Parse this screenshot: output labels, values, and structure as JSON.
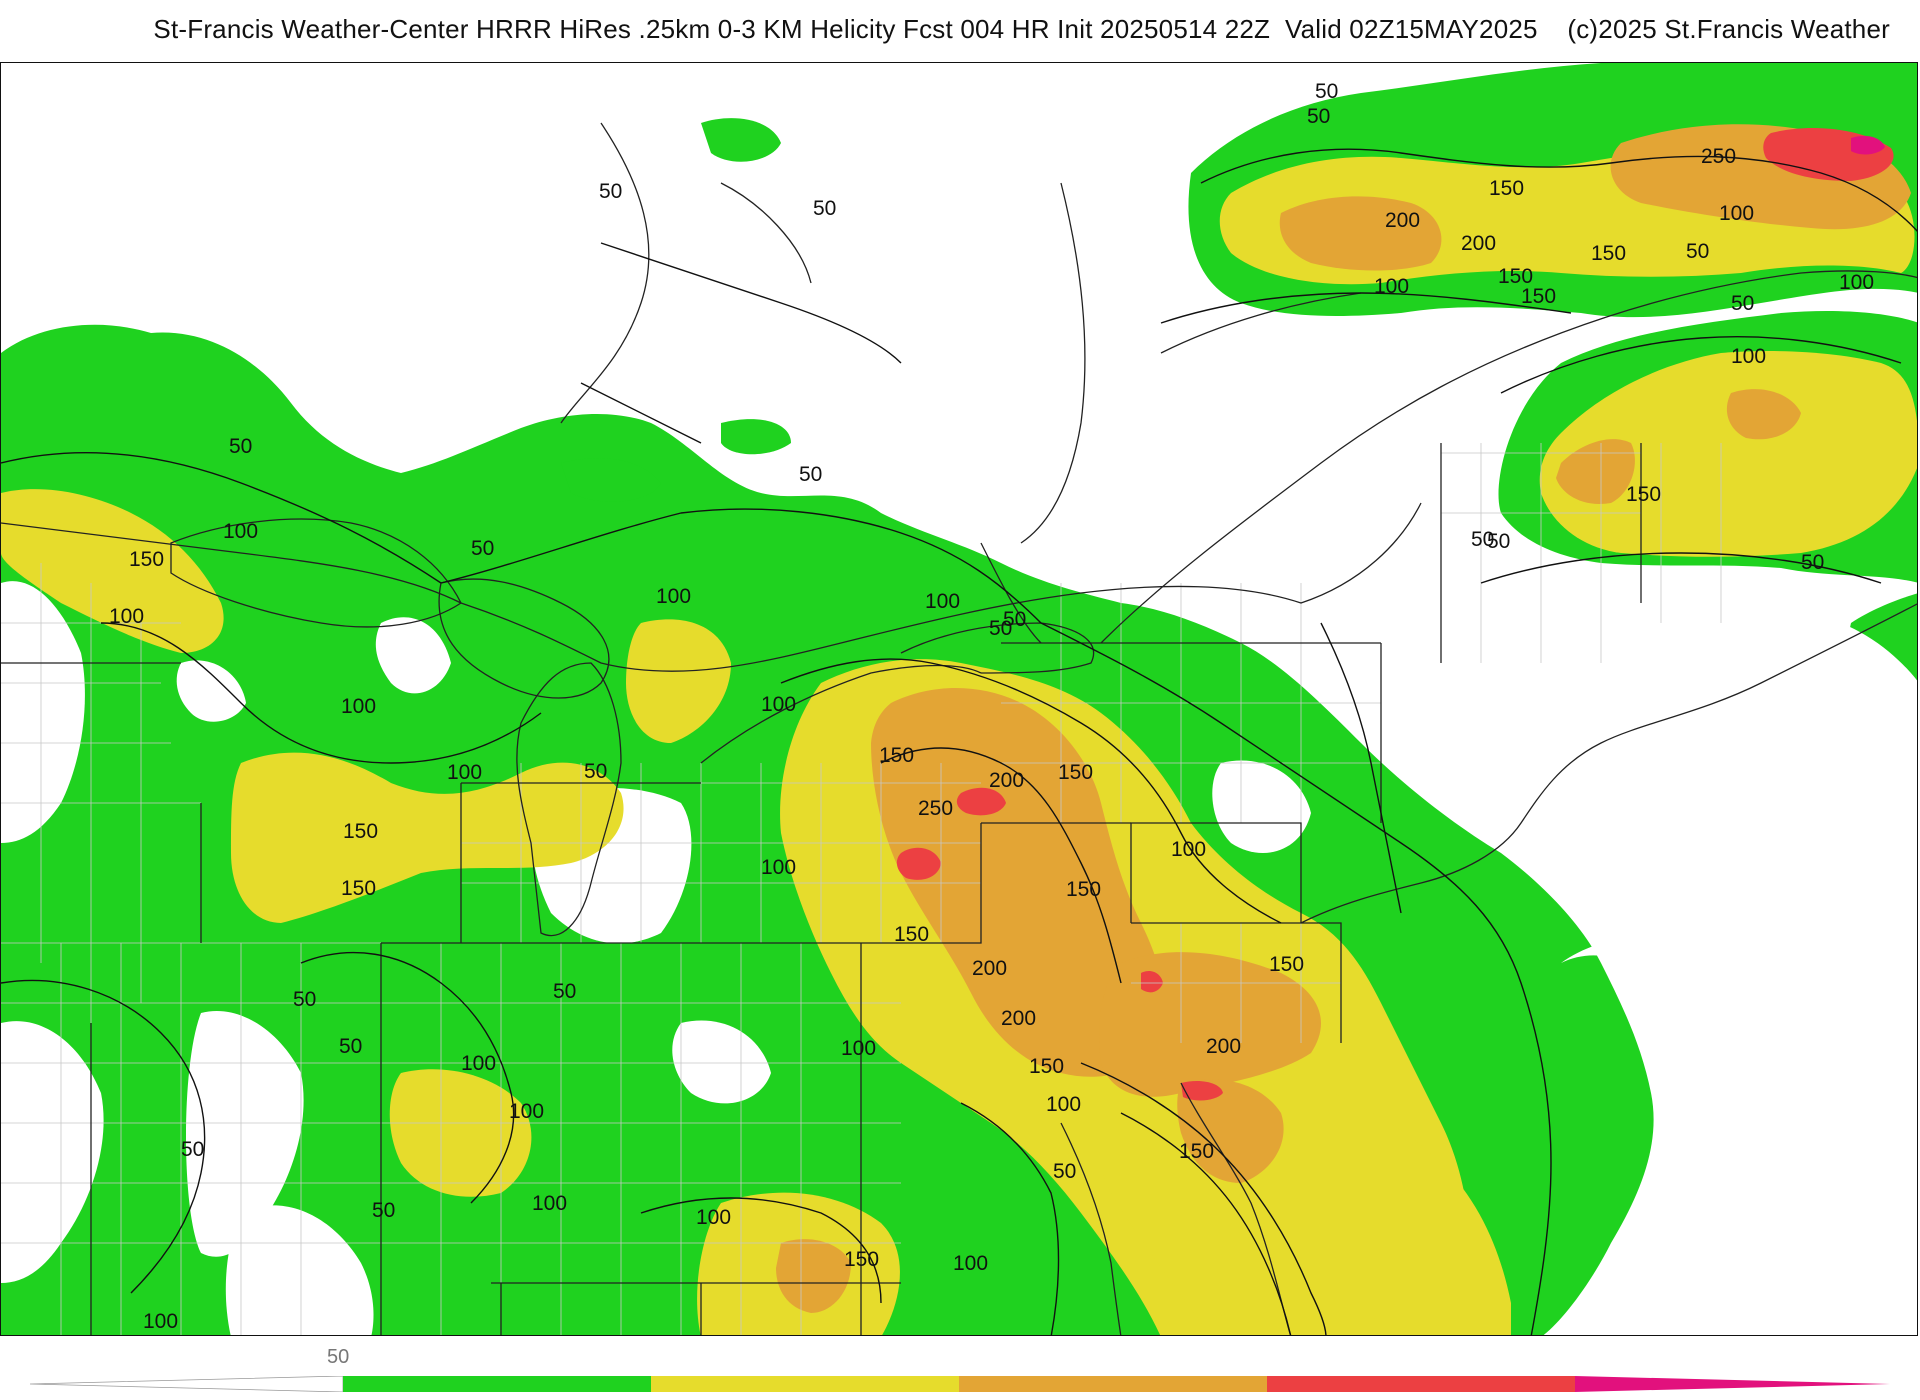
{
  "header": {
    "title": "St-Francis Weather-Center HRRR HiRes .25km 0-3 KM Helicity Fcst 004 HR Init 20250514 22Z  Valid 02Z15MAY2025    (c)2025 St.Francis Weather"
  },
  "colors": {
    "green": "#1fd21f",
    "yellow": "#e6dc2c",
    "orange": "#e3a535",
    "red": "#ec4042",
    "magenta": "#e2117d",
    "state_border": "#222222",
    "county_border": "#c8c8c8"
  },
  "map": {
    "field": "0-3 KM Helicity",
    "contour_labels": [
      {
        "id": "l1",
        "text": "50"
      },
      {
        "id": "l2",
        "text": "50"
      },
      {
        "id": "l3",
        "text": "50"
      },
      {
        "id": "l4",
        "text": "100"
      },
      {
        "id": "l5",
        "text": "150"
      },
      {
        "id": "l6",
        "text": "100"
      },
      {
        "id": "l7",
        "text": "100"
      },
      {
        "id": "l8",
        "text": "50"
      },
      {
        "id": "l9",
        "text": "100"
      },
      {
        "id": "l10",
        "text": "50"
      },
      {
        "id": "l11",
        "text": "150"
      },
      {
        "id": "l12",
        "text": "150"
      },
      {
        "id": "l13",
        "text": "100"
      },
      {
        "id": "l14",
        "text": "100"
      },
      {
        "id": "l15",
        "text": "50"
      },
      {
        "id": "l16",
        "text": "150"
      },
      {
        "id": "l17",
        "text": "200"
      },
      {
        "id": "l18",
        "text": "250"
      },
      {
        "id": "l19",
        "text": "150"
      },
      {
        "id": "l20",
        "text": "100"
      },
      {
        "id": "l21",
        "text": "50"
      },
      {
        "id": "l22",
        "text": "100"
      },
      {
        "id": "l23",
        "text": "50"
      },
      {
        "id": "l24",
        "text": "150"
      },
      {
        "id": "l25",
        "text": "200"
      },
      {
        "id": "l26",
        "text": "200"
      },
      {
        "id": "l27",
        "text": "150"
      },
      {
        "id": "l28",
        "text": "100"
      },
      {
        "id": "l29",
        "text": "150"
      },
      {
        "id": "l30",
        "text": "200"
      },
      {
        "id": "l31",
        "text": "150"
      },
      {
        "id": "l32",
        "text": "100"
      },
      {
        "id": "l33",
        "text": "50"
      },
      {
        "id": "l34",
        "text": "100"
      },
      {
        "id": "l35",
        "text": "50"
      },
      {
        "id": "l36",
        "text": "100"
      },
      {
        "id": "l37",
        "text": "100"
      },
      {
        "id": "l38",
        "text": "50"
      },
      {
        "id": "l39",
        "text": "50"
      },
      {
        "id": "l40",
        "text": "100"
      },
      {
        "id": "l41",
        "text": "50"
      },
      {
        "id": "l42",
        "text": "100"
      },
      {
        "id": "l43",
        "text": "150"
      },
      {
        "id": "l44",
        "text": "100"
      },
      {
        "id": "l45",
        "text": "50"
      },
      {
        "id": "l46",
        "text": "100"
      },
      {
        "id": "l47",
        "text": "150"
      },
      {
        "id": "l48",
        "text": "250"
      },
      {
        "id": "l49",
        "text": "150"
      },
      {
        "id": "l50",
        "text": "200"
      },
      {
        "id": "l51",
        "text": "150"
      },
      {
        "id": "l52",
        "text": "100"
      },
      {
        "id": "l53",
        "text": "50"
      },
      {
        "id": "l54",
        "text": "50"
      },
      {
        "id": "l55",
        "text": "100"
      },
      {
        "id": "l56",
        "text": "150"
      },
      {
        "id": "l57",
        "text": "200"
      },
      {
        "id": "l58",
        "text": "150"
      },
      {
        "id": "l59",
        "text": "100"
      },
      {
        "id": "l60",
        "text": "50"
      },
      {
        "id": "l61",
        "text": "50"
      },
      {
        "id": "l62",
        "text": "100"
      },
      {
        "id": "l63",
        "text": "50"
      },
      {
        "id": "l64",
        "text": "50"
      },
      {
        "id": "l65",
        "text": "150"
      },
      {
        "id": "l66",
        "text": "50"
      }
    ]
  },
  "colorbar": {
    "tick_label": "50"
  }
}
